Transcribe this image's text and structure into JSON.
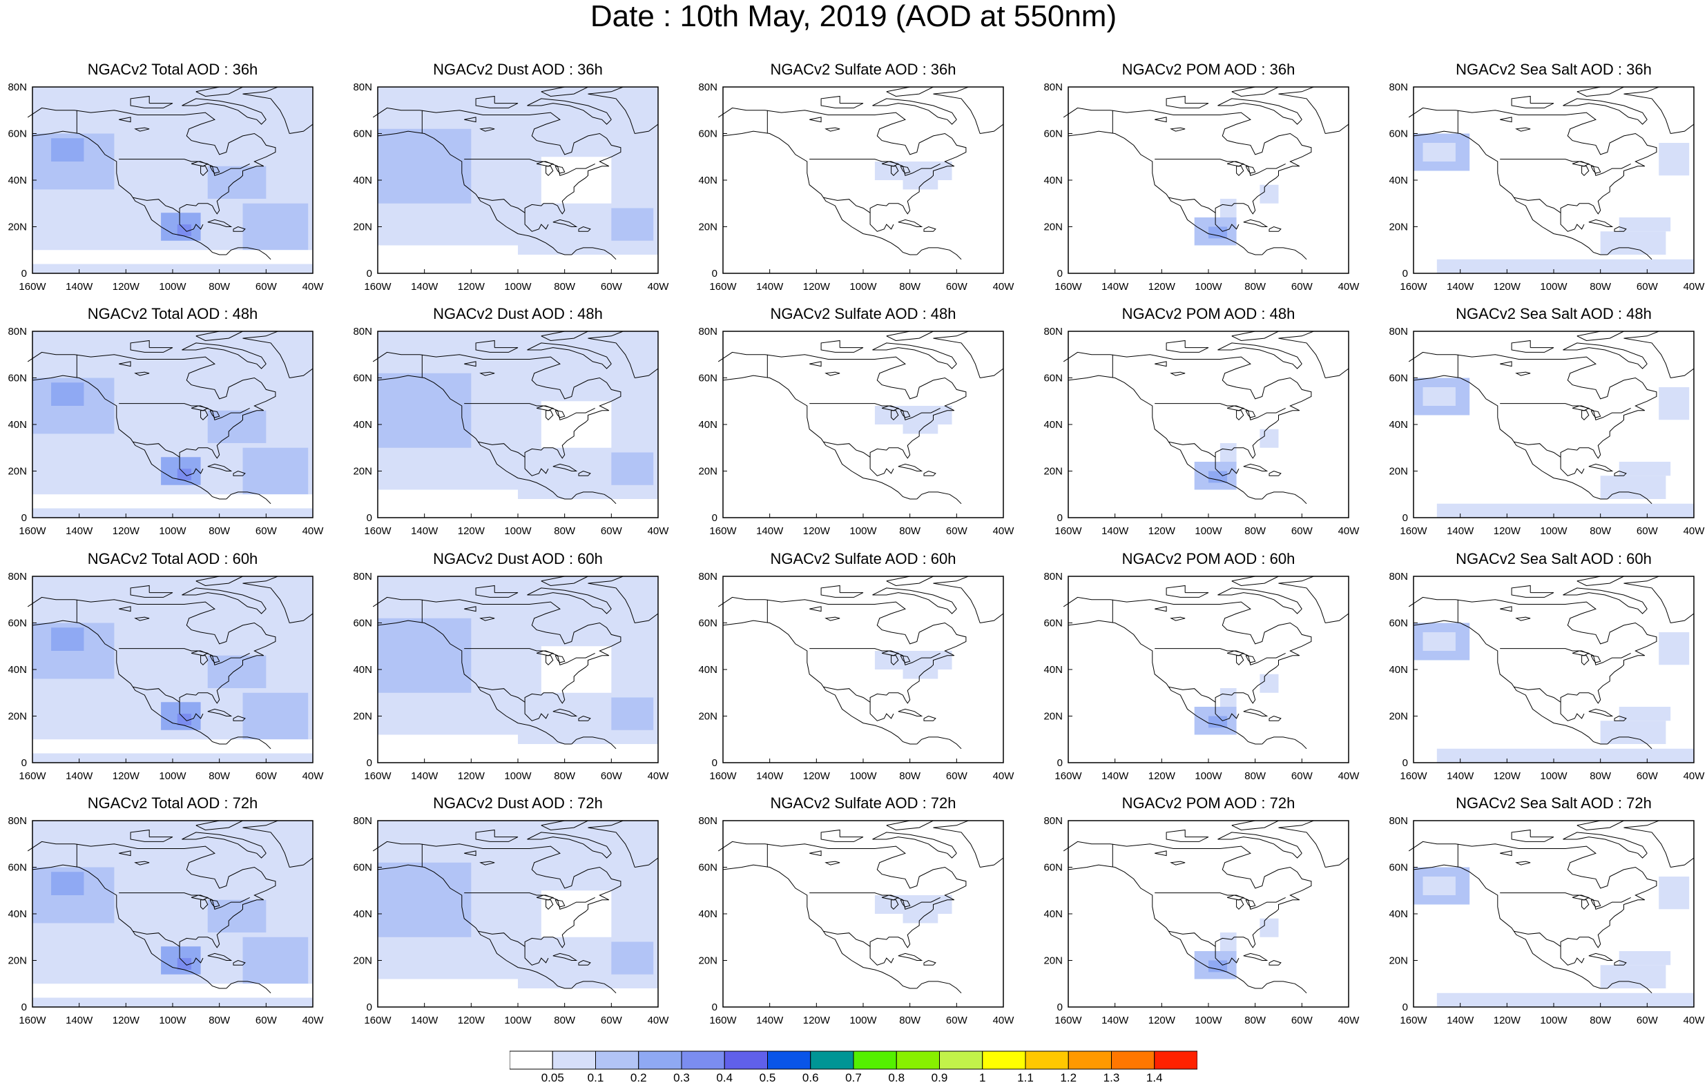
{
  "title": "Date : 10th May, 2019 (AOD at 550nm)",
  "row_labels": [
    "36h",
    "48h",
    "60h",
    "72h"
  ],
  "column_products": [
    "Total",
    "Dust",
    "Sulfate",
    "POM",
    "Sea Salt"
  ],
  "panel_titles": [
    [
      "NGACv2 Total AOD : 36h",
      "NGACv2 Dust AOD : 36h",
      "NGACv2 Sulfate AOD : 36h",
      "NGACv2 POM AOD : 36h",
      "NGACv2 Sea Salt AOD : 36h"
    ],
    [
      "NGACv2 Total AOD : 48h",
      "NGACv2 Dust AOD : 48h",
      "NGACv2 Sulfate AOD : 48h",
      "NGACv2 POM AOD : 48h",
      "NGACv2 Sea Salt AOD : 48h"
    ],
    [
      "NGACv2 Total AOD : 60h",
      "NGACv2 Dust AOD : 60h",
      "NGACv2 Sulfate AOD : 60h",
      "NGACv2 POM AOD : 60h",
      "NGACv2 Sea Salt AOD : 60h"
    ],
    [
      "NGACv2 Total AOD : 72h",
      "NGACv2 Dust AOD : 72h",
      "NGACv2 Sulfate AOD : 72h",
      "NGACv2 POM AOD : 72h",
      "NGACv2 Sea Salt  AOD : 72h"
    ]
  ],
  "map": {
    "lon_range": [
      -160,
      -40
    ],
    "lat_range": [
      0,
      80
    ],
    "x_ticks": [
      "160W",
      "140W",
      "120W",
      "100W",
      "80W",
      "60W",
      "40W"
    ],
    "y_ticks": [
      "0",
      "20N",
      "40N",
      "60N",
      "80N"
    ],
    "coastline_color": "#000000"
  },
  "colorbar": {
    "colors": [
      "#ffffff",
      "#d6dff9",
      "#b2c4f6",
      "#8fa9f3",
      "#7b8df0",
      "#6060ea",
      "#0a55e8",
      "#009595",
      "#54f000",
      "#88f000",
      "#c2f24a",
      "#ffff00",
      "#ffc800",
      "#ff9900",
      "#ff7700",
      "#ff2200"
    ],
    "labels": [
      "0.05",
      "0.1",
      "0.2",
      "0.3",
      "0.4",
      "0.5",
      "0.6",
      "0.7",
      "0.8",
      "0.9",
      "1",
      "1.1",
      "1.2",
      "1.3",
      "1.4"
    ]
  }
}
